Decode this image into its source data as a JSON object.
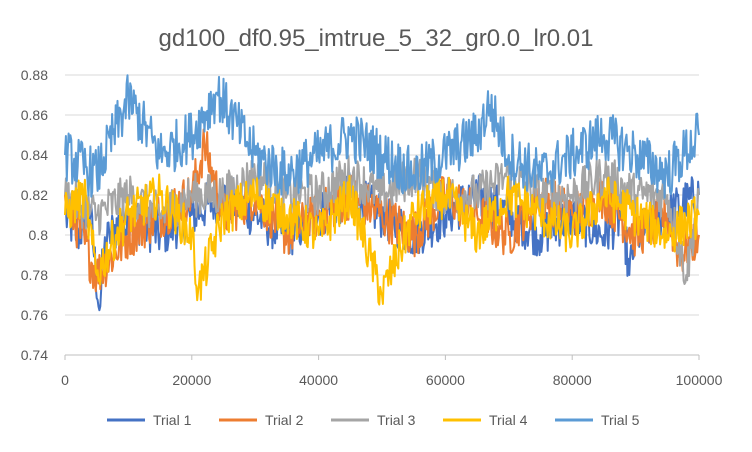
{
  "chart_data": {
    "type": "line",
    "title": "gd100_df0.95_imtrue_5_32_gr0.0_lr0.01",
    "xlabel": "",
    "ylabel": "",
    "xlim": [
      0,
      100000
    ],
    "ylim": [
      0.74,
      0.88
    ],
    "x_ticks": [
      0,
      20000,
      40000,
      60000,
      80000,
      100000
    ],
    "x_tick_labels": [
      "0",
      "20000",
      "40000",
      "60000",
      "80000",
      "100000"
    ],
    "y_ticks": [
      0.74,
      0.76,
      0.78,
      0.8,
      0.82,
      0.84,
      0.86,
      0.88
    ],
    "y_tick_labels": [
      "0.74",
      "0.76",
      "0.78",
      "0.8",
      "0.82",
      "0.84",
      "0.86",
      "0.88"
    ],
    "grid": "horizontal",
    "legend_position": "bottom",
    "series": [
      {
        "name": "Trial 1",
        "color": "#4472C4",
        "x": [
          0,
          2000,
          4000,
          5500,
          6000,
          7000,
          10000,
          15000,
          20000,
          25000,
          30000,
          35000,
          40000,
          45000,
          50000,
          55000,
          60000,
          65000,
          70000,
          75000,
          80000,
          85000,
          88000,
          89000,
          90000,
          95000,
          100000
        ],
        "y": [
          0.81,
          0.8,
          0.81,
          0.76,
          0.79,
          0.8,
          0.81,
          0.8,
          0.81,
          0.82,
          0.81,
          0.8,
          0.81,
          0.82,
          0.81,
          0.8,
          0.81,
          0.82,
          0.81,
          0.8,
          0.81,
          0.8,
          0.81,
          0.78,
          0.8,
          0.81,
          0.82
        ]
      },
      {
        "name": "Trial 2",
        "color": "#ED7D31",
        "x": [
          0,
          5000,
          10000,
          15000,
          20000,
          22000,
          25000,
          30000,
          35000,
          40000,
          45000,
          50000,
          55000,
          60000,
          65000,
          70000,
          75000,
          80000,
          85000,
          90000,
          95000,
          97000,
          100000
        ],
        "y": [
          0.82,
          0.78,
          0.8,
          0.81,
          0.82,
          0.845,
          0.81,
          0.82,
          0.8,
          0.81,
          0.82,
          0.81,
          0.8,
          0.82,
          0.81,
          0.8,
          0.82,
          0.81,
          0.82,
          0.8,
          0.81,
          0.79,
          0.8
        ]
      },
      {
        "name": "Trial 3",
        "color": "#A5A5A5",
        "x": [
          0,
          5000,
          10000,
          15000,
          20000,
          25000,
          30000,
          35000,
          40000,
          45000,
          50000,
          55000,
          60000,
          65000,
          70000,
          75000,
          80000,
          85000,
          90000,
          95000,
          98000,
          100000
        ],
        "y": [
          0.82,
          0.81,
          0.82,
          0.81,
          0.82,
          0.82,
          0.83,
          0.82,
          0.82,
          0.83,
          0.82,
          0.83,
          0.82,
          0.82,
          0.83,
          0.82,
          0.82,
          0.83,
          0.82,
          0.82,
          0.78,
          0.82
        ]
      },
      {
        "name": "Trial 4",
        "color": "#FFC000",
        "x": [
          0,
          3000,
          5000,
          8000,
          10000,
          15000,
          20000,
          21000,
          25000,
          30000,
          35000,
          40000,
          45000,
          50000,
          55000,
          60000,
          65000,
          70000,
          75000,
          80000,
          85000,
          90000,
          95000,
          100000
        ],
        "y": [
          0.81,
          0.82,
          0.78,
          0.8,
          0.81,
          0.82,
          0.8,
          0.772,
          0.81,
          0.82,
          0.81,
          0.8,
          0.82,
          0.77,
          0.81,
          0.82,
          0.8,
          0.82,
          0.81,
          0.8,
          0.82,
          0.81,
          0.8,
          0.81
        ]
      },
      {
        "name": "Trial 5",
        "color": "#5B9BD5",
        "x": [
          0,
          5000,
          10000,
          15000,
          20000,
          24000,
          30000,
          35000,
          40000,
          45000,
          50000,
          55000,
          60000,
          65000,
          67000,
          70000,
          75000,
          80000,
          85000,
          90000,
          95000,
          100000
        ],
        "y": [
          0.84,
          0.83,
          0.868,
          0.84,
          0.85,
          0.871,
          0.84,
          0.83,
          0.84,
          0.85,
          0.84,
          0.83,
          0.84,
          0.85,
          0.865,
          0.84,
          0.83,
          0.84,
          0.85,
          0.84,
          0.83,
          0.85
        ]
      }
    ]
  }
}
